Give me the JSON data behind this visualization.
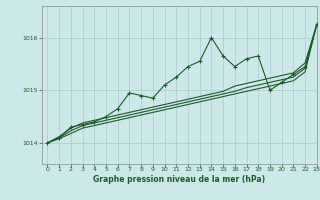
{
  "title": "Graphe pression niveau de la mer (hPa)",
  "background_color": "#cce8e8",
  "grid_color": "#aacccc",
  "line_color": "#1a5c2a",
  "xlim": [
    -0.5,
    23
  ],
  "ylim": [
    1013.6,
    1016.6
  ],
  "yticks": [
    1014,
    1015,
    1016
  ],
  "xticks": [
    0,
    1,
    2,
    3,
    4,
    5,
    6,
    7,
    8,
    9,
    10,
    11,
    12,
    13,
    14,
    15,
    16,
    17,
    18,
    19,
    20,
    21,
    22,
    23
  ],
  "series1": [
    1014.0,
    1014.1,
    1014.3,
    1014.35,
    1014.4,
    1014.5,
    1014.65,
    1014.95,
    1014.9,
    1014.85,
    1015.1,
    1015.25,
    1015.45,
    1015.55,
    1016.0,
    1015.65,
    1015.45,
    1015.6,
    1015.65,
    1015.0,
    1015.15,
    1015.3,
    1015.45,
    1016.25
  ],
  "series2": [
    1014.0,
    1014.12,
    1014.28,
    1014.38,
    1014.43,
    1014.48,
    1014.53,
    1014.58,
    1014.63,
    1014.68,
    1014.73,
    1014.78,
    1014.83,
    1014.88,
    1014.93,
    1014.98,
    1015.08,
    1015.13,
    1015.18,
    1015.23,
    1015.28,
    1015.33,
    1015.52,
    1016.25
  ],
  "series3": [
    1014.0,
    1014.1,
    1014.23,
    1014.33,
    1014.38,
    1014.43,
    1014.48,
    1014.53,
    1014.58,
    1014.63,
    1014.68,
    1014.73,
    1014.78,
    1014.83,
    1014.88,
    1014.93,
    1014.98,
    1015.05,
    1015.1,
    1015.15,
    1015.2,
    1015.25,
    1015.42,
    1016.25
  ],
  "series4": [
    1014.0,
    1014.08,
    1014.18,
    1014.28,
    1014.33,
    1014.38,
    1014.43,
    1014.48,
    1014.53,
    1014.58,
    1014.63,
    1014.68,
    1014.73,
    1014.78,
    1014.83,
    1014.88,
    1014.93,
    1014.98,
    1015.03,
    1015.08,
    1015.13,
    1015.18,
    1015.35,
    1016.25
  ]
}
